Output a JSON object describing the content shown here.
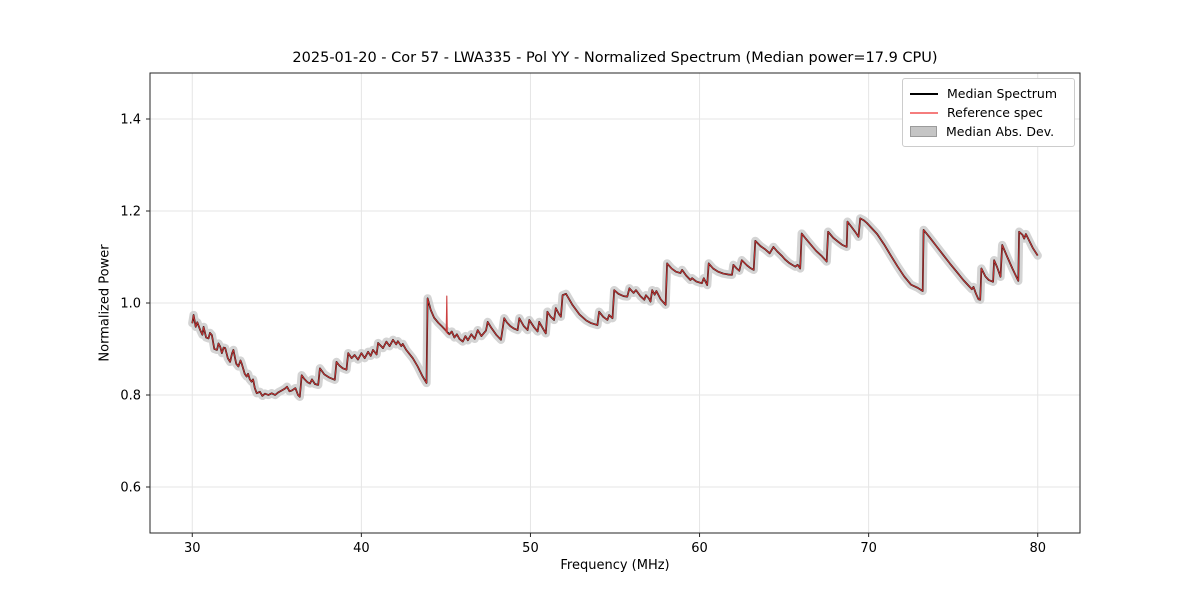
{
  "figure": {
    "title": "2025-01-20 - Cor 57 - LWA335 - Pol YY - Normalized Spectrum (Median power=17.9 CPU)"
  },
  "chart_data": {
    "type": "line",
    "title": "2025-01-20 - Cor 57 - LWA335 - Pol YY - Normalized Spectrum (Median power=17.9 CPU)",
    "xlabel": "Frequency (MHz)",
    "ylabel": "Normalized Power",
    "xlim": [
      27.5,
      82.5
    ],
    "ylim": [
      0.5,
      1.5
    ],
    "x_ticks": [
      30,
      40,
      50,
      60,
      70,
      80
    ],
    "x_tick_labels": [
      "30",
      "40",
      "50",
      "60",
      "70",
      "80"
    ],
    "y_ticks": [
      0.6,
      0.8,
      1.0,
      1.2,
      1.4
    ],
    "y_tick_labels": [
      "0.6",
      "0.8",
      "1.0",
      "1.2",
      "1.4"
    ],
    "grid": true,
    "grid_color": "#e5e5e5",
    "legend_position": "upper right",
    "series": [
      {
        "name": "Median Spectrum",
        "type": "line",
        "color": "#000000",
        "points": [
          [
            30.0,
            0.956
          ],
          [
            30.08,
            0.974
          ],
          [
            30.2,
            0.948
          ],
          [
            30.3,
            0.958
          ],
          [
            30.47,
            0.941
          ],
          [
            30.6,
            0.931
          ],
          [
            30.67,
            0.948
          ],
          [
            30.82,
            0.925
          ],
          [
            30.96,
            0.923
          ],
          [
            31.05,
            0.935
          ],
          [
            31.16,
            0.93
          ],
          [
            31.3,
            0.9
          ],
          [
            31.46,
            0.898
          ],
          [
            31.55,
            0.912
          ],
          [
            31.65,
            0.905
          ],
          [
            31.75,
            0.891
          ],
          [
            31.85,
            0.903
          ],
          [
            31.95,
            0.902
          ],
          [
            32.1,
            0.88
          ],
          [
            32.24,
            0.872
          ],
          [
            32.35,
            0.89
          ],
          [
            32.43,
            0.898
          ],
          [
            32.6,
            0.868
          ],
          [
            32.73,
            0.862
          ],
          [
            32.85,
            0.875
          ],
          [
            32.92,
            0.869
          ],
          [
            33.1,
            0.846
          ],
          [
            33.22,
            0.84
          ],
          [
            33.3,
            0.846
          ],
          [
            33.4,
            0.834
          ],
          [
            33.51,
            0.829
          ],
          [
            33.6,
            0.834
          ],
          [
            33.7,
            0.815
          ],
          [
            33.81,
            0.804
          ],
          [
            34.0,
            0.807
          ],
          [
            34.15,
            0.798
          ],
          [
            34.3,
            0.803
          ],
          [
            34.5,
            0.8
          ],
          [
            34.7,
            0.804
          ],
          [
            34.9,
            0.8
          ],
          [
            35.1,
            0.806
          ],
          [
            35.3,
            0.81
          ],
          [
            35.48,
            0.814
          ],
          [
            35.6,
            0.818
          ],
          [
            35.75,
            0.808
          ],
          [
            35.9,
            0.81
          ],
          [
            36.1,
            0.815
          ],
          [
            36.25,
            0.8
          ],
          [
            36.36,
            0.796
          ],
          [
            36.47,
            0.843
          ],
          [
            36.6,
            0.836
          ],
          [
            36.8,
            0.828
          ],
          [
            36.96,
            0.825
          ],
          [
            37.08,
            0.834
          ],
          [
            37.25,
            0.824
          ],
          [
            37.45,
            0.822
          ],
          [
            37.55,
            0.858
          ],
          [
            37.8,
            0.845
          ],
          [
            38.1,
            0.838
          ],
          [
            38.43,
            0.833
          ],
          [
            38.53,
            0.872
          ],
          [
            38.7,
            0.864
          ],
          [
            38.9,
            0.858
          ],
          [
            39.12,
            0.855
          ],
          [
            39.22,
            0.891
          ],
          [
            39.42,
            0.88
          ],
          [
            39.6,
            0.887
          ],
          [
            39.8,
            0.877
          ],
          [
            40.0,
            0.891
          ],
          [
            40.2,
            0.88
          ],
          [
            40.4,
            0.894
          ],
          [
            40.55,
            0.885
          ],
          [
            40.69,
            0.898
          ],
          [
            40.9,
            0.888
          ],
          [
            40.99,
            0.913
          ],
          [
            41.28,
            0.902
          ],
          [
            41.48,
            0.916
          ],
          [
            41.67,
            0.906
          ],
          [
            41.87,
            0.92
          ],
          [
            42.06,
            0.91
          ],
          [
            42.16,
            0.917
          ],
          [
            42.36,
            0.906
          ],
          [
            42.45,
            0.911
          ],
          [
            42.65,
            0.898
          ],
          [
            43.04,
            0.88
          ],
          [
            43.33,
            0.862
          ],
          [
            43.63,
            0.84
          ],
          [
            43.85,
            0.826
          ],
          [
            43.92,
            1.01
          ],
          [
            44.1,
            0.985
          ],
          [
            44.3,
            0.968
          ],
          [
            44.55,
            0.957
          ],
          [
            44.8,
            0.948
          ],
          [
            45.0,
            0.94
          ],
          [
            45.2,
            0.932
          ],
          [
            45.35,
            0.938
          ],
          [
            45.5,
            0.925
          ],
          [
            45.65,
            0.932
          ],
          [
            45.8,
            0.922
          ],
          [
            46.0,
            0.916
          ],
          [
            46.15,
            0.928
          ],
          [
            46.3,
            0.919
          ],
          [
            46.5,
            0.932
          ],
          [
            46.7,
            0.922
          ],
          [
            46.88,
            0.941
          ],
          [
            47.1,
            0.928
          ],
          [
            47.37,
            0.94
          ],
          [
            47.47,
            0.959
          ],
          [
            47.7,
            0.945
          ],
          [
            48.0,
            0.93
          ],
          [
            48.26,
            0.92
          ],
          [
            48.45,
            0.967
          ],
          [
            48.6,
            0.958
          ],
          [
            48.8,
            0.95
          ],
          [
            49.0,
            0.945
          ],
          [
            49.24,
            0.941
          ],
          [
            49.34,
            0.967
          ],
          [
            49.6,
            0.95
          ],
          [
            49.83,
            0.941
          ],
          [
            49.93,
            0.963
          ],
          [
            50.2,
            0.948
          ],
          [
            50.42,
            0.938
          ],
          [
            50.52,
            0.959
          ],
          [
            50.75,
            0.944
          ],
          [
            50.91,
            0.934
          ],
          [
            51.0,
            0.981
          ],
          [
            51.2,
            0.97
          ],
          [
            51.4,
            0.963
          ],
          [
            51.5,
            0.989
          ],
          [
            51.7,
            0.975
          ],
          [
            51.8,
            0.97
          ],
          [
            51.9,
            1.017
          ],
          [
            52.1,
            1.02
          ],
          [
            52.5,
            0.995
          ],
          [
            52.9,
            0.975
          ],
          [
            53.3,
            0.962
          ],
          [
            53.6,
            0.956
          ],
          [
            53.96,
            0.952
          ],
          [
            54.06,
            0.981
          ],
          [
            54.3,
            0.97
          ],
          [
            54.55,
            0.963
          ],
          [
            54.65,
            0.974
          ],
          [
            54.85,
            0.967
          ],
          [
            54.95,
            1.028
          ],
          [
            55.2,
            1.02
          ],
          [
            55.5,
            1.015
          ],
          [
            55.73,
            1.014
          ],
          [
            55.85,
            1.032
          ],
          [
            56.1,
            1.022
          ],
          [
            56.24,
            1.028
          ],
          [
            56.5,
            1.015
          ],
          [
            56.73,
            1.007
          ],
          [
            56.83,
            1.017
          ],
          [
            57.0,
            1.01
          ],
          [
            57.1,
            1.003
          ],
          [
            57.2,
            1.028
          ],
          [
            57.35,
            1.018
          ],
          [
            57.45,
            1.026
          ],
          [
            57.7,
            1.008
          ],
          [
            57.99,
            0.996
          ],
          [
            58.08,
            1.086
          ],
          [
            58.35,
            1.075
          ],
          [
            58.6,
            1.068
          ],
          [
            58.87,
            1.065
          ],
          [
            58.97,
            1.072
          ],
          [
            59.2,
            1.06
          ],
          [
            59.46,
            1.05
          ],
          [
            59.56,
            1.054
          ],
          [
            59.8,
            1.047
          ],
          [
            60.05,
            1.044
          ],
          [
            60.14,
            1.043
          ],
          [
            60.25,
            1.054
          ],
          [
            60.45,
            1.039
          ],
          [
            60.54,
            1.086
          ],
          [
            60.8,
            1.075
          ],
          [
            61.1,
            1.068
          ],
          [
            61.4,
            1.064
          ],
          [
            61.7,
            1.062
          ],
          [
            61.92,
            1.061
          ],
          [
            62.0,
            1.083
          ],
          [
            62.2,
            1.075
          ],
          [
            62.35,
            1.07
          ],
          [
            62.5,
            1.093
          ],
          [
            62.8,
            1.082
          ],
          [
            63.0,
            1.076
          ],
          [
            63.2,
            1.072
          ],
          [
            63.3,
            1.135
          ],
          [
            63.6,
            1.124
          ],
          [
            63.9,
            1.116
          ],
          [
            64.15,
            1.108
          ],
          [
            64.37,
            1.122
          ],
          [
            64.6,
            1.112
          ],
          [
            64.85,
            1.103
          ],
          [
            65.05,
            1.095
          ],
          [
            65.3,
            1.087
          ],
          [
            65.56,
            1.081
          ],
          [
            65.66,
            1.079
          ],
          [
            65.8,
            1.083
          ],
          [
            65.95,
            1.075
          ],
          [
            66.04,
            1.151
          ],
          [
            66.3,
            1.139
          ],
          [
            66.6,
            1.126
          ],
          [
            66.9,
            1.113
          ],
          [
            67.2,
            1.103
          ],
          [
            67.52,
            1.09
          ],
          [
            67.6,
            1.155
          ],
          [
            67.9,
            1.142
          ],
          [
            68.2,
            1.133
          ],
          [
            68.45,
            1.126
          ],
          [
            68.7,
            1.122
          ],
          [
            68.75,
            1.177
          ],
          [
            69.0,
            1.165
          ],
          [
            69.2,
            1.155
          ],
          [
            69.4,
            1.144
          ],
          [
            69.5,
            1.184
          ],
          [
            69.7,
            1.18
          ],
          [
            69.9,
            1.174
          ],
          [
            70.2,
            1.162
          ],
          [
            70.5,
            1.15
          ],
          [
            70.9,
            1.128
          ],
          [
            71.3,
            1.104
          ],
          [
            71.7,
            1.08
          ],
          [
            72.1,
            1.058
          ],
          [
            72.5,
            1.04
          ],
          [
            72.9,
            1.033
          ],
          [
            73.2,
            1.026
          ],
          [
            73.25,
            1.159
          ],
          [
            73.6,
            1.143
          ],
          [
            74.0,
            1.124
          ],
          [
            74.4,
            1.105
          ],
          [
            74.8,
            1.086
          ],
          [
            75.2,
            1.068
          ],
          [
            75.6,
            1.05
          ],
          [
            75.9,
            1.038
          ],
          [
            76.1,
            1.03
          ],
          [
            76.2,
            1.035
          ],
          [
            76.35,
            1.02
          ],
          [
            76.5,
            1.008
          ],
          [
            76.6,
            1.007
          ],
          [
            76.67,
            1.075
          ],
          [
            76.9,
            1.058
          ],
          [
            77.1,
            1.05
          ],
          [
            77.36,
            1.046
          ],
          [
            77.42,
            1.093
          ],
          [
            77.6,
            1.078
          ],
          [
            77.8,
            1.057
          ],
          [
            77.9,
            1.126
          ],
          [
            78.2,
            1.1
          ],
          [
            78.5,
            1.075
          ],
          [
            78.85,
            1.048
          ],
          [
            78.9,
            1.155
          ],
          [
            79.1,
            1.148
          ],
          [
            79.2,
            1.14
          ],
          [
            79.3,
            1.15
          ],
          [
            79.5,
            1.135
          ],
          [
            79.7,
            1.12
          ],
          [
            80.0,
            1.103
          ]
        ]
      },
      {
        "name": "Reference spec",
        "type": "line",
        "color": "#c93535",
        "legend_color": "#f57d7d",
        "same_points_as_median": true,
        "extra_spike_points": [
          [
            45.02,
            0.937
          ],
          [
            45.05,
            1.015
          ],
          [
            45.08,
            0.934
          ]
        ]
      },
      {
        "name": "Median Abs. Dev.",
        "type": "band",
        "color": "#c9c9c9",
        "half_width": 0.009,
        "follows": "Median Spectrum"
      }
    ]
  }
}
